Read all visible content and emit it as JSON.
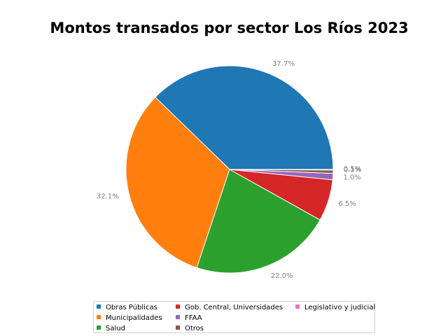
{
  "chart_data": {
    "type": "pie",
    "title": "Montos transados por sector Los Ríos 2023",
    "slices": [
      {
        "label": "Obras Públicas",
        "value": 37.7,
        "pct_label": "37.7%",
        "color": "#1f77b4"
      },
      {
        "label": "Municipalidades",
        "value": 32.1,
        "pct_label": "32.1%",
        "color": "#ff7f0e"
      },
      {
        "label": "Salud",
        "value": 22.0,
        "pct_label": "22.0%",
        "color": "#2ca02c"
      },
      {
        "label": "Gob. Central, Universidades",
        "value": 6.5,
        "pct_label": "6.5%",
        "color": "#d62728"
      },
      {
        "label": "FFAA",
        "value": 1.0,
        "pct_label": "1.0%",
        "color": "#9467bd"
      },
      {
        "label": "Otros",
        "value": 0.5,
        "pct_label": "0.5%",
        "color": "#8c564b"
      },
      {
        "label": "Legislativo y judicial",
        "value": 0.1,
        "pct_label": "0.1%",
        "color": "#e377c2"
      }
    ],
    "legend": {
      "placement": "bottom-center",
      "columns": 3
    }
  }
}
